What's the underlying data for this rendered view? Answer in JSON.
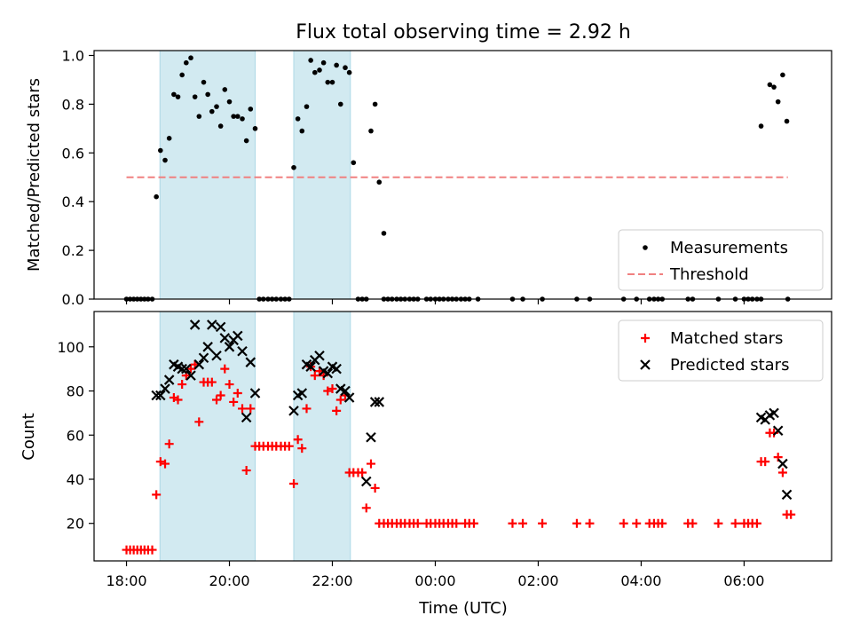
{
  "chart_data": [
    {
      "type": "scatter",
      "title": "Flux total observing time = 2.92 h",
      "ylabel": "Matched/Predicted stars",
      "xlabel": "",
      "ylim": [
        0,
        1.02
      ],
      "x_ticks": [
        "18:00",
        "20:00",
        "22:00",
        "00:00",
        "02:00",
        "04:00",
        "06:00"
      ],
      "y_ticks": [
        "0.0",
        "0.2",
        "0.4",
        "0.6",
        "0.8",
        "1.0"
      ],
      "x_unit": "hours since 18:00 UTC",
      "xlim": [
        -0.63,
        13.7
      ],
      "shaded_intervals": [
        [
          0.65,
          2.5
        ],
        [
          3.25,
          4.35
        ]
      ],
      "shade_color": "#add8e6",
      "threshold": {
        "name": "Threshold",
        "y": 0.5,
        "x_range": [
          0,
          12.85
        ],
        "color": "#f08080"
      },
      "legend": {
        "placement": "lower right",
        "entries": [
          "Measurements",
          "Threshold"
        ]
      },
      "series": [
        {
          "name": "Measurements",
          "color": "#000000",
          "points": [
            [
              0.0,
              0
            ],
            [
              0.07,
              0
            ],
            [
              0.14,
              0
            ],
            [
              0.21,
              0
            ],
            [
              0.28,
              0
            ],
            [
              0.35,
              0
            ],
            [
              0.42,
              0
            ],
            [
              0.5,
              0
            ],
            [
              0.58,
              0.42
            ],
            [
              0.66,
              0.61
            ],
            [
              0.75,
              0.57
            ],
            [
              0.83,
              0.66
            ],
            [
              0.92,
              0.84
            ],
            [
              1.0,
              0.83
            ],
            [
              1.08,
              0.92
            ],
            [
              1.16,
              0.97
            ],
            [
              1.25,
              0.99
            ],
            [
              1.33,
              0.83
            ],
            [
              1.41,
              0.75
            ],
            [
              1.5,
              0.89
            ],
            [
              1.58,
              0.84
            ],
            [
              1.66,
              0.77
            ],
            [
              1.75,
              0.79
            ],
            [
              1.83,
              0.71
            ],
            [
              1.91,
              0.86
            ],
            [
              2.0,
              0.81
            ],
            [
              2.08,
              0.75
            ],
            [
              2.16,
              0.75
            ],
            [
              2.25,
              0.74
            ],
            [
              2.33,
              0.65
            ],
            [
              2.41,
              0.78
            ],
            [
              2.5,
              0.7
            ],
            [
              2.58,
              0
            ],
            [
              2.66,
              0
            ],
            [
              2.75,
              0
            ],
            [
              2.83,
              0
            ],
            [
              2.91,
              0
            ],
            [
              3.0,
              0
            ],
            [
              3.08,
              0
            ],
            [
              3.16,
              0
            ],
            [
              3.25,
              0.54
            ],
            [
              3.33,
              0.74
            ],
            [
              3.41,
              0.69
            ],
            [
              3.5,
              0.79
            ],
            [
              3.58,
              0.98
            ],
            [
              3.66,
              0.93
            ],
            [
              3.75,
              0.94
            ],
            [
              3.83,
              0.97
            ],
            [
              3.91,
              0.89
            ],
            [
              4.0,
              0.89
            ],
            [
              4.08,
              0.96
            ],
            [
              4.16,
              0.8
            ],
            [
              4.25,
              0.95
            ],
            [
              4.33,
              0.93
            ],
            [
              4.41,
              0.56
            ],
            [
              4.5,
              0
            ],
            [
              4.58,
              0
            ],
            [
              4.66,
              0
            ],
            [
              4.75,
              0.69
            ],
            [
              4.83,
              0.8
            ],
            [
              4.91,
              0.48
            ],
            [
              5.0,
              0.27
            ],
            [
              5.0,
              0
            ],
            [
              5.08,
              0
            ],
            [
              5.16,
              0
            ],
            [
              5.25,
              0
            ],
            [
              5.33,
              0
            ],
            [
              5.41,
              0
            ],
            [
              5.5,
              0
            ],
            [
              5.58,
              0
            ],
            [
              5.66,
              0
            ],
            [
              5.83,
              0
            ],
            [
              5.91,
              0
            ],
            [
              6.0,
              0
            ],
            [
              6.08,
              0
            ],
            [
              6.16,
              0
            ],
            [
              6.25,
              0
            ],
            [
              6.33,
              0
            ],
            [
              6.41,
              0
            ],
            [
              6.5,
              0
            ],
            [
              6.58,
              0
            ],
            [
              6.66,
              0
            ],
            [
              6.83,
              0
            ],
            [
              7.5,
              0
            ],
            [
              7.7,
              0
            ],
            [
              8.08,
              0
            ],
            [
              8.75,
              0
            ],
            [
              9.0,
              0
            ],
            [
              9.66,
              0
            ],
            [
              9.91,
              0
            ],
            [
              10.16,
              0
            ],
            [
              10.25,
              0
            ],
            [
              10.33,
              0
            ],
            [
              10.41,
              0
            ],
            [
              10.91,
              0
            ],
            [
              11.0,
              0
            ],
            [
              11.5,
              0
            ],
            [
              11.83,
              0
            ],
            [
              12.0,
              0
            ],
            [
              12.08,
              0
            ],
            [
              12.16,
              0
            ],
            [
              12.25,
              0
            ],
            [
              12.33,
              0
            ],
            [
              12.33,
              0.71
            ],
            [
              12.5,
              0.88
            ],
            [
              12.58,
              0.87
            ],
            [
              12.66,
              0.81
            ],
            [
              12.75,
              0.92
            ],
            [
              12.83,
              0.73
            ],
            [
              12.85,
              0
            ]
          ]
        }
      ]
    },
    {
      "type": "scatter",
      "title": "",
      "ylabel": "Count",
      "xlabel": "Time (UTC)",
      "ylim": [
        3,
        116
      ],
      "x_ticks": [
        "18:00",
        "20:00",
        "22:00",
        "00:00",
        "02:00",
        "04:00",
        "06:00"
      ],
      "y_ticks": [
        "20",
        "40",
        "60",
        "80",
        "100"
      ],
      "x_unit": "hours since 18:00 UTC",
      "xlim": [
        -0.63,
        13.7
      ],
      "shaded_intervals": [
        [
          0.65,
          2.5
        ],
        [
          3.25,
          4.35
        ]
      ],
      "shade_color": "#add8e6",
      "legend": {
        "placement": "upper right",
        "entries": [
          "Matched stars",
          "Predicted stars"
        ]
      },
      "series": [
        {
          "name": "Matched stars",
          "marker": "plus",
          "color": "#ff0000",
          "points": [
            [
              0.0,
              8
            ],
            [
              0.07,
              8
            ],
            [
              0.14,
              8
            ],
            [
              0.21,
              8
            ],
            [
              0.28,
              8
            ],
            [
              0.35,
              8
            ],
            [
              0.42,
              8
            ],
            [
              0.5,
              8
            ],
            [
              0.58,
              33
            ],
            [
              0.66,
              48
            ],
            [
              0.75,
              47
            ],
            [
              0.83,
              56
            ],
            [
              0.92,
              77
            ],
            [
              1.0,
              76
            ],
            [
              1.08,
              83
            ],
            [
              1.16,
              87
            ],
            [
              1.25,
              90
            ],
            [
              1.33,
              92
            ],
            [
              1.41,
              66
            ],
            [
              1.5,
              84
            ],
            [
              1.58,
              84
            ],
            [
              1.66,
              84
            ],
            [
              1.75,
              76
            ],
            [
              1.83,
              78
            ],
            [
              1.91,
              90
            ],
            [
              2.0,
              83
            ],
            [
              2.08,
              75
            ],
            [
              2.16,
              79
            ],
            [
              2.25,
              72
            ],
            [
              2.33,
              44
            ],
            [
              2.41,
              72
            ],
            [
              2.5,
              55
            ],
            [
              2.58,
              55
            ],
            [
              2.66,
              55
            ],
            [
              2.75,
              55
            ],
            [
              2.83,
              55
            ],
            [
              2.91,
              55
            ],
            [
              3.0,
              55
            ],
            [
              3.08,
              55
            ],
            [
              3.16,
              55
            ],
            [
              3.25,
              38
            ],
            [
              3.33,
              58
            ],
            [
              3.41,
              54
            ],
            [
              3.5,
              72
            ],
            [
              3.58,
              91
            ],
            [
              3.66,
              87
            ],
            [
              3.75,
              89
            ],
            [
              3.83,
              87
            ],
            [
              3.91,
              80
            ],
            [
              4.0,
              81
            ],
            [
              4.08,
              71
            ],
            [
              4.16,
              76
            ],
            [
              4.25,
              78
            ],
            [
              4.33,
              43
            ],
            [
              4.41,
              43
            ],
            [
              4.5,
              43
            ],
            [
              4.58,
              43
            ],
            [
              4.66,
              27
            ],
            [
              4.75,
              47
            ],
            [
              4.83,
              36
            ],
            [
              4.91,
              20
            ],
            [
              5.0,
              20
            ],
            [
              5.08,
              20
            ],
            [
              5.16,
              20
            ],
            [
              5.25,
              20
            ],
            [
              5.33,
              20
            ],
            [
              5.41,
              20
            ],
            [
              5.5,
              20
            ],
            [
              5.58,
              20
            ],
            [
              5.66,
              20
            ],
            [
              5.83,
              20
            ],
            [
              5.91,
              20
            ],
            [
              6.0,
              20
            ],
            [
              6.08,
              20
            ],
            [
              6.16,
              20
            ],
            [
              6.25,
              20
            ],
            [
              6.33,
              20
            ],
            [
              6.41,
              20
            ],
            [
              6.58,
              20
            ],
            [
              6.66,
              20
            ],
            [
              6.75,
              20
            ],
            [
              7.5,
              20
            ],
            [
              7.7,
              20
            ],
            [
              8.08,
              20
            ],
            [
              8.75,
              20
            ],
            [
              9.0,
              20
            ],
            [
              9.66,
              20
            ],
            [
              9.91,
              20
            ],
            [
              10.16,
              20
            ],
            [
              10.25,
              20
            ],
            [
              10.33,
              20
            ],
            [
              10.41,
              20
            ],
            [
              10.91,
              20
            ],
            [
              11.0,
              20
            ],
            [
              11.5,
              20
            ],
            [
              11.83,
              20
            ],
            [
              12.0,
              20
            ],
            [
              12.08,
              20
            ],
            [
              12.16,
              20
            ],
            [
              12.25,
              20
            ],
            [
              12.33,
              48
            ],
            [
              12.41,
              48
            ],
            [
              12.5,
              61
            ],
            [
              12.58,
              61
            ],
            [
              12.66,
              50
            ],
            [
              12.75,
              43
            ],
            [
              12.83,
              24
            ],
            [
              12.91,
              24
            ]
          ]
        },
        {
          "name": "Predicted stars",
          "marker": "x",
          "color": "#000000",
          "points": [
            [
              0.58,
              78
            ],
            [
              0.66,
              78
            ],
            [
              0.75,
              81
            ],
            [
              0.83,
              85
            ],
            [
              0.92,
              92
            ],
            [
              1.0,
              91
            ],
            [
              1.08,
              90
            ],
            [
              1.16,
              90
            ],
            [
              1.25,
              87
            ],
            [
              1.33,
              110
            ],
            [
              1.41,
              92
            ],
            [
              1.5,
              95
            ],
            [
              1.58,
              100
            ],
            [
              1.66,
              110
            ],
            [
              1.75,
              96
            ],
            [
              1.83,
              109
            ],
            [
              1.91,
              104
            ],
            [
              2.0,
              100
            ],
            [
              2.08,
              103
            ],
            [
              2.16,
              105
            ],
            [
              2.25,
              98
            ],
            [
              2.33,
              68
            ],
            [
              2.41,
              93
            ],
            [
              2.5,
              79
            ],
            [
              3.25,
              71
            ],
            [
              3.33,
              78
            ],
            [
              3.41,
              79
            ],
            [
              3.5,
              92
            ],
            [
              3.58,
              91
            ],
            [
              3.66,
              94
            ],
            [
              3.75,
              96
            ],
            [
              3.83,
              89
            ],
            [
              3.91,
              88
            ],
            [
              4.0,
              91
            ],
            [
              4.08,
              90
            ],
            [
              4.16,
              81
            ],
            [
              4.25,
              80
            ],
            [
              4.33,
              77
            ],
            [
              4.66,
              39
            ],
            [
              4.75,
              59
            ],
            [
              4.83,
              75
            ],
            [
              4.91,
              75
            ],
            [
              12.33,
              68
            ],
            [
              12.41,
              67
            ],
            [
              12.5,
              69
            ],
            [
              12.58,
              70
            ],
            [
              12.66,
              62
            ],
            [
              12.75,
              47
            ],
            [
              12.83,
              33
            ]
          ]
        }
      ]
    }
  ]
}
